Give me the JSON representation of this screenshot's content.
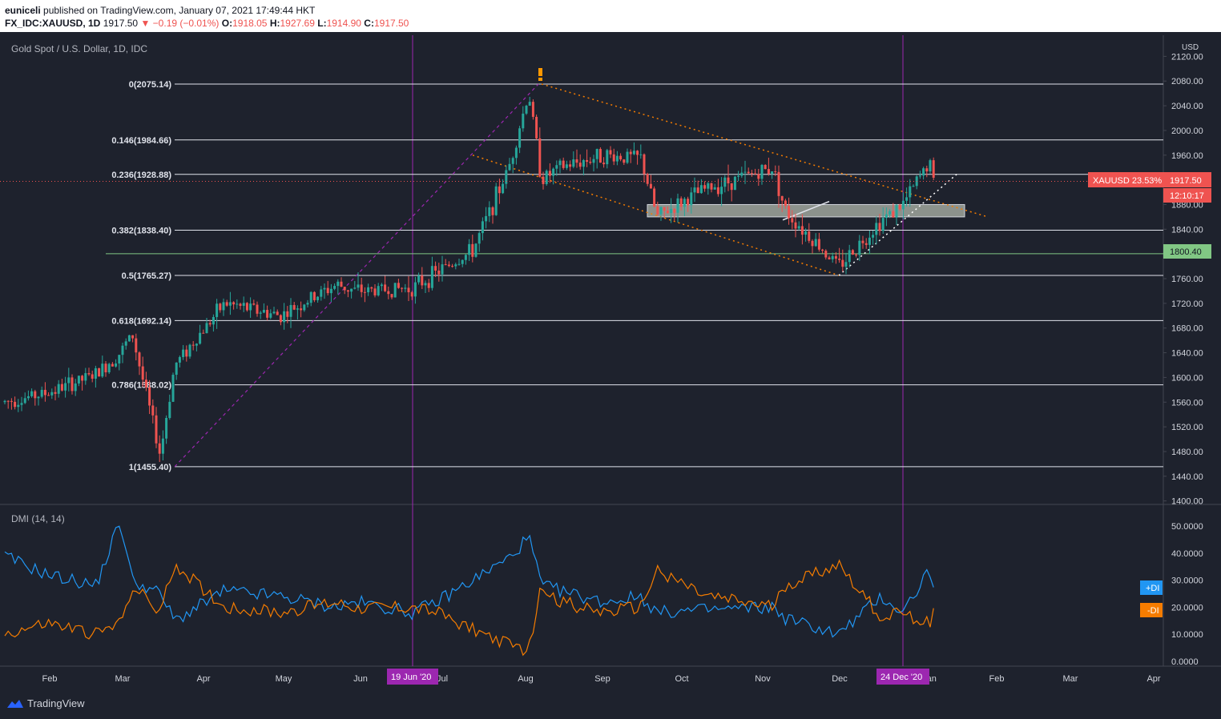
{
  "header": {
    "line1": {
      "user": "euniceli",
      "text": "published on TradingView.com, January 07, 2021 17:49:44 HKT"
    },
    "line2": {
      "symbol": "FX_IDC:XAUUSD, 1D",
      "last": "1917.50",
      "change": "−0.19 (−0.01%)",
      "o_label": "O:",
      "o": "1918.05",
      "h_label": "H:",
      "h": "1927.69",
      "l_label": "L:",
      "l": "1914.90",
      "c_label": "C:",
      "c": "1917.50"
    }
  },
  "chart_title": "Gold Spot / U.S. Dollar, 1D, IDC",
  "currency": "USD",
  "price_badges": {
    "symbol_label": "XAUUSD 23.53%",
    "price": "1917.50",
    "timer": "12:10:17",
    "level": "1800.40"
  },
  "fib_levels": [
    {
      "label": "0(2075.14)",
      "price": 2075.14
    },
    {
      "label": "0.146(1984.66)",
      "price": 1984.66
    },
    {
      "label": "0.236(1928.88)",
      "price": 1928.88
    },
    {
      "label": "0.382(1838.40)",
      "price": 1838.4
    },
    {
      "label": "0.5(1765.27)",
      "price": 1765.27
    },
    {
      "label": "0.618(1692.14)",
      "price": 1692.14
    },
    {
      "label": "0.786(1588.02)",
      "price": 1588.02
    },
    {
      "label": "1(1455.40)",
      "price": 1455.4
    }
  ],
  "x_axis": {
    "months": [
      "Feb",
      "Mar",
      "Apr",
      "May",
      "Jun",
      "Jul",
      "Aug",
      "Sep",
      "Oct",
      "Nov",
      "Dec",
      "Jan",
      "Feb",
      "Mar",
      "Apr"
    ],
    "markers": [
      "19 Jun '20",
      "24 Dec '20"
    ]
  },
  "y_axis_price": [
    "2120.00",
    "2080.00",
    "2040.00",
    "2000.00",
    "1960.00",
    "1920.00",
    "1880.00",
    "1840.00",
    "1800.00",
    "1760.00",
    "1720.00",
    "1680.00",
    "1640.00",
    "1600.00",
    "1560.00",
    "1520.00",
    "1480.00",
    "1440.00",
    "1400.00"
  ],
  "dmi": {
    "title": "DMI (14, 14)",
    "plus_label": "+DI",
    "minus_label": "-DI",
    "y_ticks": [
      "50.0000",
      "40.0000",
      "30.0000",
      "20.0000",
      "10.0000",
      "0.0000"
    ]
  },
  "branding": {
    "name": "TradingView"
  },
  "colors": {
    "bull": "#26a69a",
    "bear": "#ef5350",
    "plus_di": "#2196f3",
    "minus_di": "#f57c00",
    "marker": "#9c27b0",
    "channel": "#f57c00",
    "support": "#81c784"
  },
  "chart_data": [
    {
      "type": "candlestick",
      "title": "Gold Spot / U.S. Dollar, 1D, IDC",
      "ylabel": "USD",
      "ylim": [
        1400,
        2120
      ],
      "approx_path": {
        "dates": [
          "Jan 20",
          "Feb 1",
          "Feb 20",
          "Mar 1",
          "Mar 9",
          "Mar 19",
          "Mar 25",
          "Apr 14",
          "May 1",
          "May 18",
          "Jun 1",
          "Jun 19",
          "Jul 1",
          "Jul 15",
          "Jul 27",
          "Aug 6",
          "Aug 11",
          "Aug 20",
          "Sep 1",
          "Sep 15",
          "Sep 24",
          "Oct 15",
          "Nov 4",
          "Nov 9",
          "Nov 30",
          "Dec 15",
          "Dec 24",
          "Jan 5",
          "Jan 7"
        ],
        "close": [
          1560,
          1575,
          1605,
          1640,
          1670,
          1475,
          1620,
          1720,
          1700,
          1750,
          1740,
          1745,
          1770,
          1805,
          1940,
          2062,
          1920,
          1940,
          1960,
          1955,
          1860,
          1905,
          1940,
          1870,
          1780,
          1855,
          1880,
          1950,
          1917.5
        ]
      },
      "annotations": [
        "descending channel",
        "rising trendline",
        "support zone 1860-1880"
      ]
    },
    {
      "type": "line",
      "title": "DMI (14, 14)",
      "ylim": [
        0,
        55
      ],
      "series": [
        {
          "name": "+DI",
          "values": [
            39,
            32,
            28,
            52,
            30,
            25,
            15,
            26,
            24,
            20,
            22,
            18,
            22,
            30,
            38,
            46,
            28,
            26,
            22,
            24,
            18,
            19,
            20,
            16,
            10,
            24,
            18,
            34,
            27
          ]
        },
        {
          "name": "-DI",
          "values": [
            10,
            14,
            10,
            14,
            28,
            18,
            36,
            20,
            18,
            22,
            20,
            20,
            18,
            12,
            6,
            4,
            28,
            22,
            18,
            20,
            34,
            24,
            20,
            28,
            36,
            16,
            18,
            14,
            19
          ]
        }
      ]
    }
  ]
}
